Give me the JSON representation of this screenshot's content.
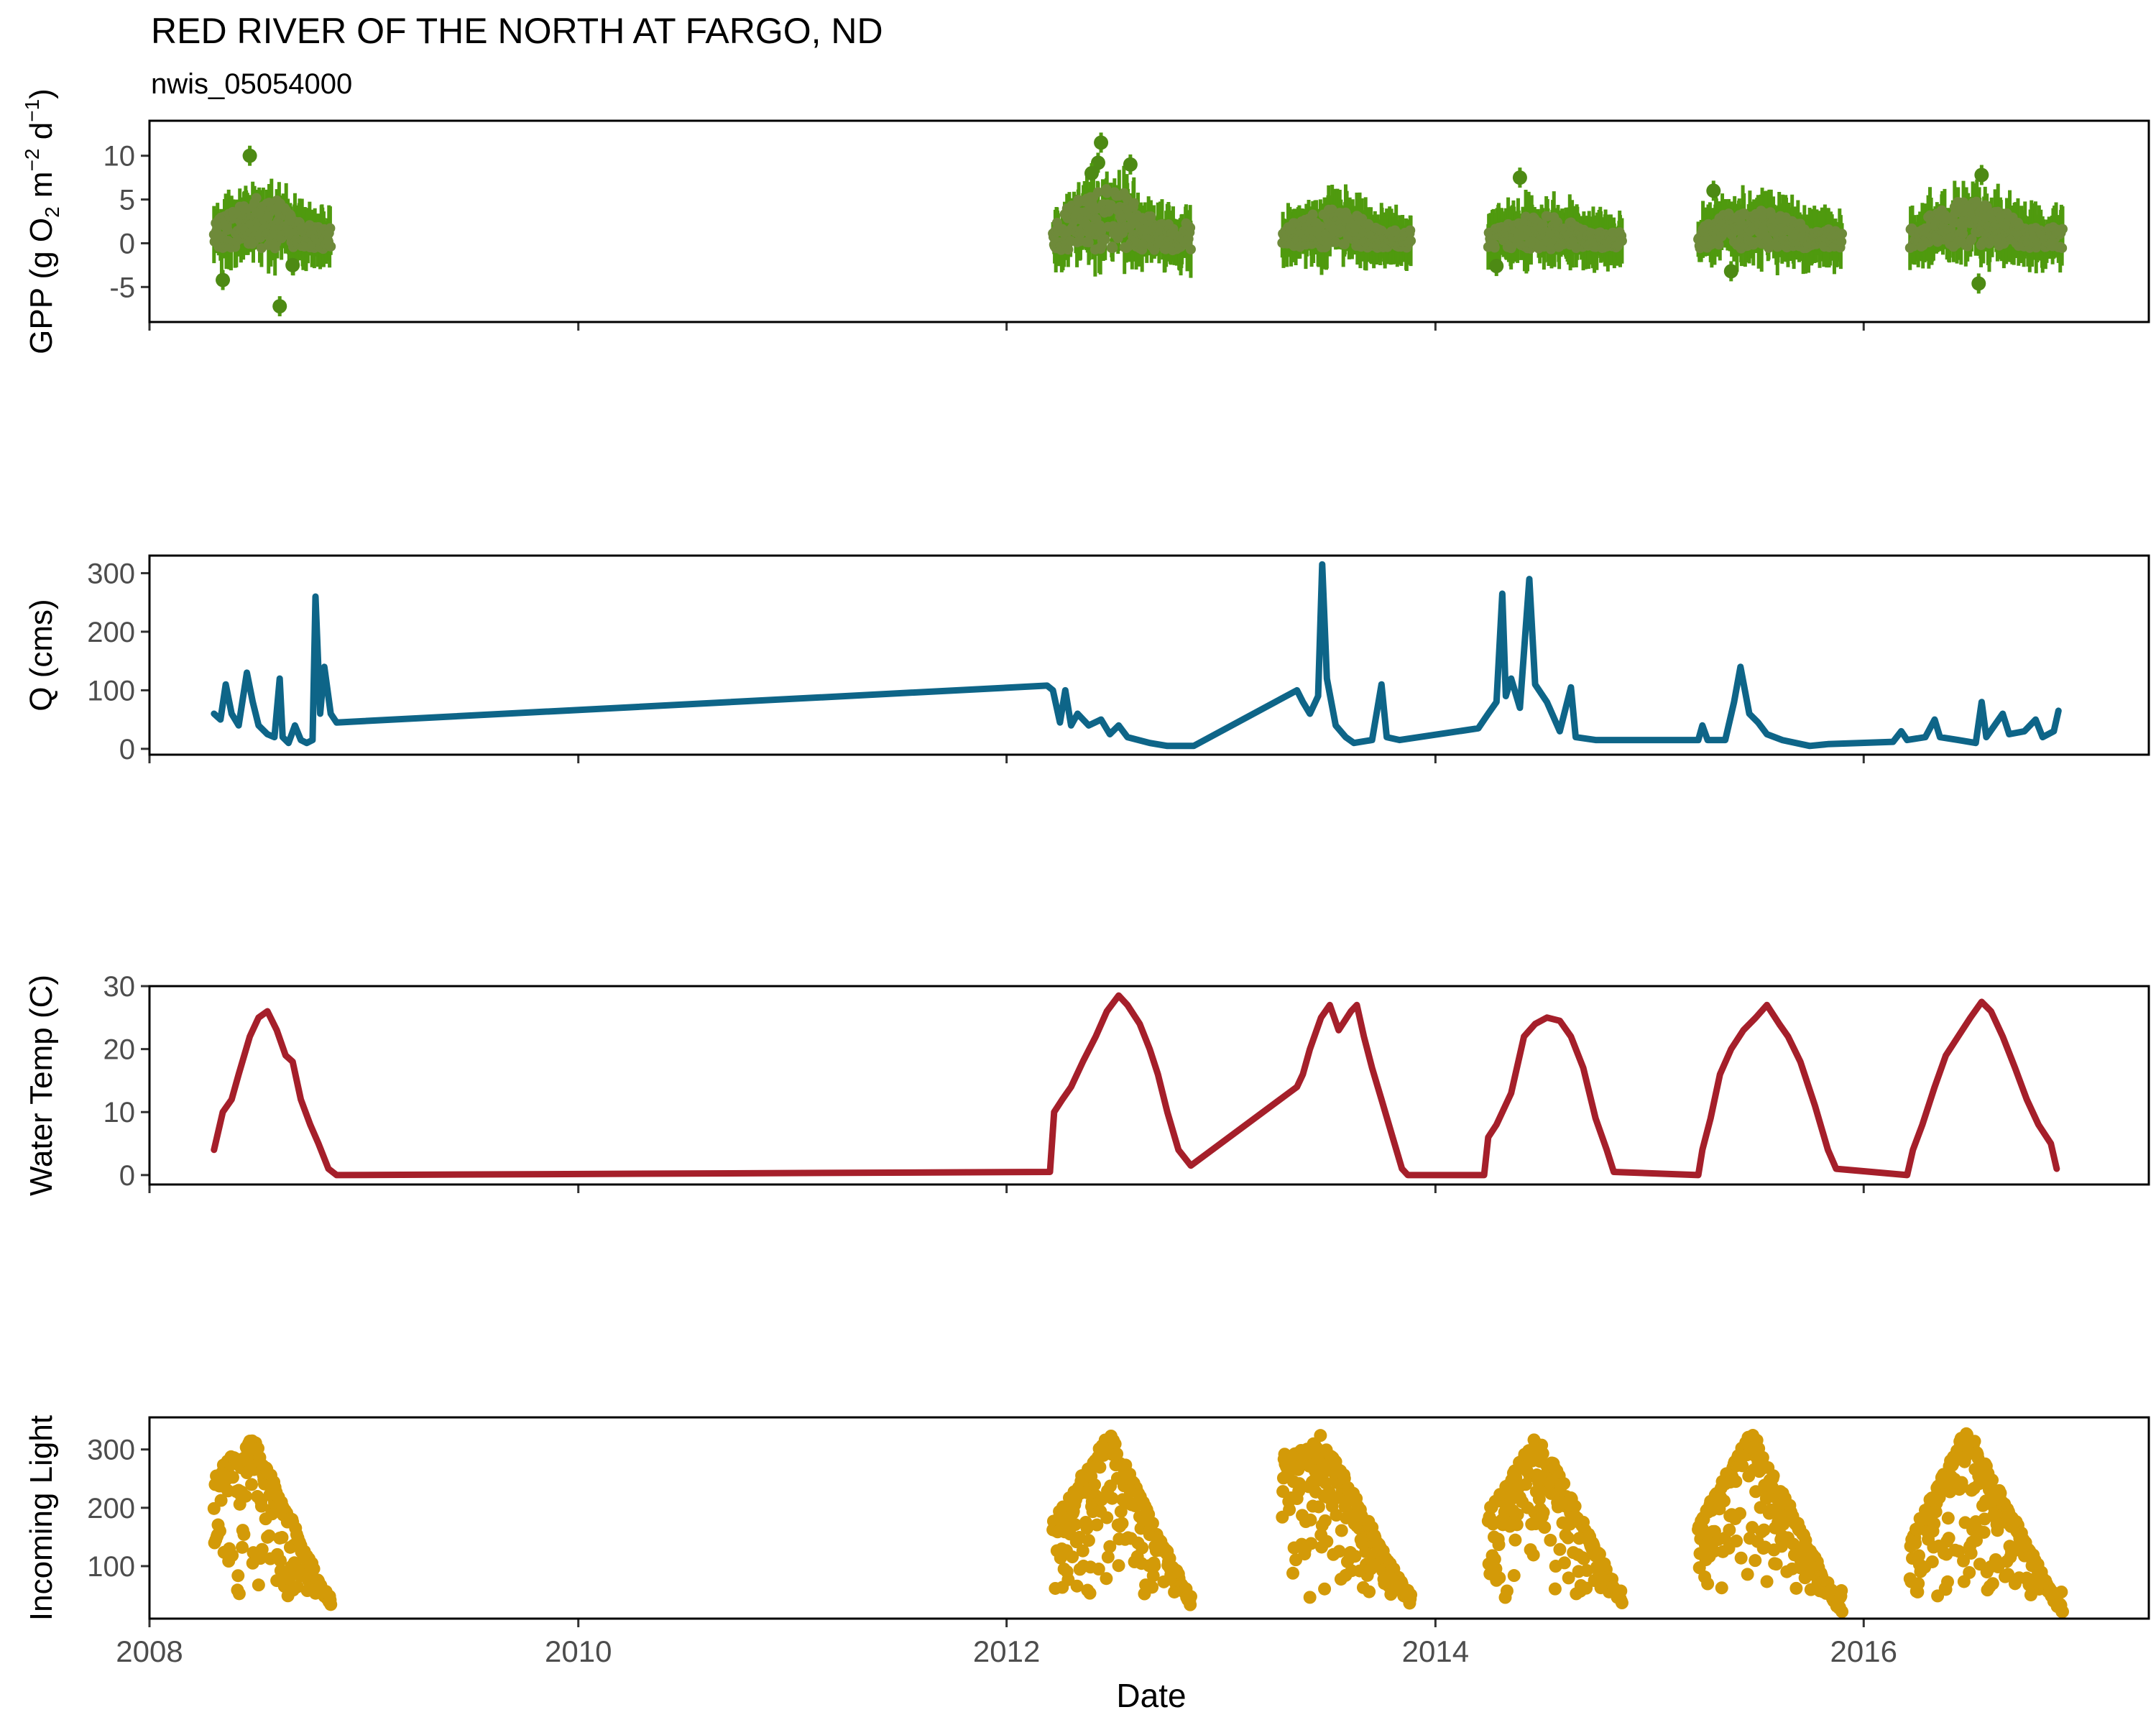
{
  "chart_data": {
    "type": "multi-panel",
    "title": "RED RIVER OF THE NORTH AT FARGO, ND",
    "subtitle": "nwis_05054000",
    "xlabel": "Date",
    "x_range": [
      "2008-01-01",
      "2017-05-01"
    ],
    "x_ticks": [
      "2008",
      "2010",
      "2012",
      "2014",
      "2016"
    ],
    "panels": [
      {
        "id": "gpp",
        "type": "scatter",
        "ylabel": {
          "base": "GPP (g  O",
          "sub": "2",
          "m": " m",
          "m_exp": "−2",
          "d": " d",
          "d_exp": "−1",
          "close": ")"
        },
        "ylim": [
          -9,
          14
        ],
        "yticks": [
          -5,
          0,
          5,
          10
        ],
        "ytick_labels": [
          "-5",
          "0",
          "5",
          "10"
        ],
        "color": "#4d8a14",
        "seasons": [
          {
            "start": "2008-04-20",
            "end": "2008-11-05",
            "level": 1.8,
            "spread": 2.8
          },
          {
            "start": "2012-03-20",
            "end": "2012-11-10",
            "level": 2.0,
            "spread": 3.2
          },
          {
            "start": "2013-04-15",
            "end": "2013-11-20",
            "level": 1.2,
            "spread": 2.0
          },
          {
            "start": "2014-04-01",
            "end": "2014-11-15",
            "level": 0.9,
            "spread": 1.8
          },
          {
            "start": "2015-03-25",
            "end": "2015-11-25",
            "level": 1.3,
            "spread": 2.2
          },
          {
            "start": "2016-03-20",
            "end": "2016-12-05",
            "level": 1.6,
            "spread": 2.4
          }
        ],
        "outliers": [
          [
            "2008-06-20",
            10.0
          ],
          [
            "2008-05-05",
            -4.2
          ],
          [
            "2008-08-10",
            -7.2
          ],
          [
            "2008-09-01",
            -2.5
          ],
          [
            "2012-06-10",
            11.5
          ],
          [
            "2012-06-05",
            9.2
          ],
          [
            "2012-05-25",
            8.0
          ],
          [
            "2012-07-30",
            9.0
          ],
          [
            "2014-05-25",
            7.5
          ],
          [
            "2014-04-15",
            -2.6
          ],
          [
            "2015-04-20",
            6.0
          ],
          [
            "2015-05-20",
            -3.2
          ],
          [
            "2016-07-20",
            7.8
          ],
          [
            "2016-07-15",
            -4.6
          ]
        ]
      },
      {
        "id": "discharge",
        "type": "line",
        "ylabel": "Q (cms)",
        "ylim": [
          -10,
          330
        ],
        "yticks": [
          0,
          100,
          200,
          300
        ],
        "ytick_labels": [
          "0",
          "100",
          "200",
          "300"
        ],
        "color": "#0e6588",
        "points": [
          [
            "2008-04-20",
            60
          ],
          [
            "2008-05-01",
            50
          ],
          [
            "2008-05-10",
            110
          ],
          [
            "2008-05-20",
            60
          ],
          [
            "2008-06-01",
            40
          ],
          [
            "2008-06-15",
            130
          ],
          [
            "2008-06-25",
            80
          ],
          [
            "2008-07-05",
            40
          ],
          [
            "2008-07-20",
            25
          ],
          [
            "2008-08-01",
            20
          ],
          [
            "2008-08-10",
            120
          ],
          [
            "2008-08-15",
            20
          ],
          [
            "2008-08-25",
            10
          ],
          [
            "2008-09-05",
            40
          ],
          [
            "2008-09-15",
            15
          ],
          [
            "2008-09-25",
            10
          ],
          [
            "2008-10-05",
            15
          ],
          [
            "2008-10-10",
            260
          ],
          [
            "2008-10-18",
            60
          ],
          [
            "2008-10-25",
            140
          ],
          [
            "2008-11-05",
            60
          ],
          [
            "2008-11-15",
            45
          ],
          [
            "2012-03-10",
            108
          ],
          [
            "2012-03-20",
            100
          ],
          [
            "2012-04-01",
            45
          ],
          [
            "2012-04-10",
            100
          ],
          [
            "2012-04-20",
            40
          ],
          [
            "2012-05-01",
            60
          ],
          [
            "2012-05-20",
            40
          ],
          [
            "2012-06-10",
            50
          ],
          [
            "2012-06-25",
            25
          ],
          [
            "2012-07-10",
            40
          ],
          [
            "2012-07-25",
            20
          ],
          [
            "2012-09-01",
            10
          ],
          [
            "2012-10-01",
            5
          ],
          [
            "2012-11-15",
            5
          ],
          [
            "2013-05-10",
            100
          ],
          [
            "2013-05-20",
            80
          ],
          [
            "2013-06-01",
            60
          ],
          [
            "2013-06-15",
            90
          ],
          [
            "2013-06-22",
            315
          ],
          [
            "2013-06-30",
            120
          ],
          [
            "2013-07-15",
            40
          ],
          [
            "2013-08-01",
            20
          ],
          [
            "2013-08-15",
            10
          ],
          [
            "2013-09-15",
            15
          ],
          [
            "2013-10-01",
            110
          ],
          [
            "2013-10-10",
            20
          ],
          [
            "2013-11-01",
            15
          ],
          [
            "2014-03-15",
            35
          ],
          [
            "2014-04-01",
            60
          ],
          [
            "2014-04-15",
            80
          ],
          [
            "2014-04-25",
            265
          ],
          [
            "2014-05-01",
            90
          ],
          [
            "2014-05-10",
            120
          ],
          [
            "2014-05-25",
            70
          ],
          [
            "2014-06-10",
            290
          ],
          [
            "2014-06-20",
            110
          ],
          [
            "2014-07-10",
            80
          ],
          [
            "2014-08-01",
            30
          ],
          [
            "2014-08-20",
            105
          ],
          [
            "2014-08-28",
            20
          ],
          [
            "2014-10-01",
            15
          ],
          [
            "2015-03-25",
            15
          ],
          [
            "2015-04-01",
            40
          ],
          [
            "2015-04-10",
            15
          ],
          [
            "2015-05-10",
            15
          ],
          [
            "2015-05-25",
            80
          ],
          [
            "2015-06-05",
            140
          ],
          [
            "2015-06-20",
            60
          ],
          [
            "2015-07-05",
            45
          ],
          [
            "2015-07-20",
            25
          ],
          [
            "2015-08-15",
            15
          ],
          [
            "2015-10-01",
            5
          ],
          [
            "2015-11-01",
            8
          ],
          [
            "2016-02-20",
            12
          ],
          [
            "2016-03-05",
            30
          ],
          [
            "2016-03-15",
            15
          ],
          [
            "2016-04-15",
            20
          ],
          [
            "2016-05-01",
            50
          ],
          [
            "2016-05-10",
            20
          ],
          [
            "2016-06-10",
            15
          ],
          [
            "2016-07-10",
            10
          ],
          [
            "2016-07-20",
            80
          ],
          [
            "2016-07-28",
            20
          ],
          [
            "2016-08-25",
            60
          ],
          [
            "2016-09-05",
            25
          ],
          [
            "2016-10-01",
            30
          ],
          [
            "2016-10-20",
            50
          ],
          [
            "2016-11-01",
            20
          ],
          [
            "2016-11-20",
            30
          ],
          [
            "2016-11-28",
            65
          ]
        ]
      },
      {
        "id": "water-temp",
        "type": "line",
        "ylabel": "Water Temp (C)",
        "ylim": [
          -1.5,
          30
        ],
        "yticks": [
          0,
          10,
          20,
          30
        ],
        "ytick_labels": [
          "0",
          "10",
          "20",
          "30"
        ],
        "color": "#a51f2a",
        "points": [
          [
            "2008-04-20",
            4
          ],
          [
            "2008-05-05",
            10
          ],
          [
            "2008-05-20",
            12
          ],
          [
            "2008-06-01",
            16
          ],
          [
            "2008-06-20",
            22
          ],
          [
            "2008-07-05",
            25
          ],
          [
            "2008-07-20",
            26
          ],
          [
            "2008-08-05",
            23
          ],
          [
            "2008-08-20",
            19
          ],
          [
            "2008-09-01",
            18
          ],
          [
            "2008-09-15",
            12
          ],
          [
            "2008-10-01",
            8
          ],
          [
            "2008-10-15",
            5
          ],
          [
            "2008-11-01",
            1
          ],
          [
            "2008-11-15",
            0
          ],
          [
            "2012-03-15",
            0.5
          ],
          [
            "2012-03-22",
            10
          ],
          [
            "2012-04-05",
            12
          ],
          [
            "2012-04-20",
            14
          ],
          [
            "2012-05-10",
            18
          ],
          [
            "2012-06-01",
            22
          ],
          [
            "2012-06-20",
            26
          ],
          [
            "2012-07-10",
            28.5
          ],
          [
            "2012-07-25",
            27
          ],
          [
            "2012-08-15",
            24
          ],
          [
            "2012-09-01",
            20
          ],
          [
            "2012-09-15",
            16
          ],
          [
            "2012-10-01",
            10
          ],
          [
            "2012-10-20",
            4
          ],
          [
            "2012-11-10",
            1.5
          ],
          [
            "2013-05-10",
            14
          ],
          [
            "2013-05-20",
            16
          ],
          [
            "2013-06-01",
            20
          ],
          [
            "2013-06-20",
            25
          ],
          [
            "2013-07-05",
            27
          ],
          [
            "2013-07-20",
            23
          ],
          [
            "2013-08-10",
            26
          ],
          [
            "2013-08-20",
            27
          ],
          [
            "2013-09-01",
            22
          ],
          [
            "2013-09-15",
            17
          ],
          [
            "2013-10-01",
            12
          ],
          [
            "2013-10-20",
            6
          ],
          [
            "2013-11-05",
            1
          ],
          [
            "2013-11-15",
            0
          ],
          [
            "2014-03-25",
            0
          ],
          [
            "2014-04-01",
            6
          ],
          [
            "2014-04-15",
            8
          ],
          [
            "2014-05-10",
            13
          ],
          [
            "2014-06-01",
            22
          ],
          [
            "2014-06-20",
            24
          ],
          [
            "2014-07-10",
            25
          ],
          [
            "2014-08-01",
            24.5
          ],
          [
            "2014-08-20",
            22
          ],
          [
            "2014-09-10",
            17
          ],
          [
            "2014-10-01",
            9
          ],
          [
            "2014-10-20",
            4
          ],
          [
            "2014-11-01",
            0.5
          ],
          [
            "2015-03-25",
            0
          ],
          [
            "2015-04-01",
            4
          ],
          [
            "2015-04-15",
            9
          ],
          [
            "2015-05-01",
            16
          ],
          [
            "2015-05-20",
            20
          ],
          [
            "2015-06-10",
            23
          ],
          [
            "2015-07-01",
            25
          ],
          [
            "2015-07-20",
            27
          ],
          [
            "2015-08-10",
            24
          ],
          [
            "2015-08-25",
            22
          ],
          [
            "2015-09-15",
            18
          ],
          [
            "2015-10-10",
            11
          ],
          [
            "2015-11-01",
            4
          ],
          [
            "2015-11-15",
            1
          ],
          [
            "2016-03-15",
            0
          ],
          [
            "2016-03-25",
            4
          ],
          [
            "2016-04-10",
            8
          ],
          [
            "2016-05-01",
            14
          ],
          [
            "2016-05-20",
            19
          ],
          [
            "2016-06-10",
            22
          ],
          [
            "2016-07-01",
            25
          ],
          [
            "2016-07-20",
            27.5
          ],
          [
            "2016-08-05",
            26
          ],
          [
            "2016-08-25",
            22
          ],
          [
            "2016-09-15",
            17
          ],
          [
            "2016-10-05",
            12
          ],
          [
            "2016-10-25",
            8
          ],
          [
            "2016-11-15",
            5
          ],
          [
            "2016-11-25",
            1
          ]
        ]
      },
      {
        "id": "light",
        "type": "scatter",
        "ylabel": "Incoming Light",
        "ylim": [
          10,
          355
        ],
        "yticks": [
          100,
          200,
          300
        ],
        "ytick_labels": [
          "100",
          "200",
          "300"
        ],
        "color": "#d39a08",
        "seasons": [
          {
            "start": "2008-04-20",
            "end": "2008-11-05",
            "peak_date": "2008-06-25",
            "start_level": 260,
            "peak": 325,
            "end_level": 40
          },
          {
            "start": "2012-03-20",
            "end": "2012-11-10",
            "peak_date": "2012-06-25",
            "start_level": 180,
            "peak": 330,
            "end_level": 45
          },
          {
            "start": "2013-04-15",
            "end": "2013-11-20",
            "peak_date": "2013-06-20",
            "start_level": 290,
            "peak": 330,
            "end_level": 45
          },
          {
            "start": "2014-04-01",
            "end": "2014-11-15",
            "peak_date": "2014-06-25",
            "start_level": 200,
            "peak": 330,
            "end_level": 45
          },
          {
            "start": "2015-03-25",
            "end": "2015-11-25",
            "peak_date": "2015-06-25",
            "start_level": 180,
            "peak": 335,
            "end_level": 25
          },
          {
            "start": "2016-03-20",
            "end": "2016-12-05",
            "peak_date": "2016-06-25",
            "start_level": 150,
            "peak": 340,
            "end_level": 25
          }
        ]
      }
    ]
  }
}
